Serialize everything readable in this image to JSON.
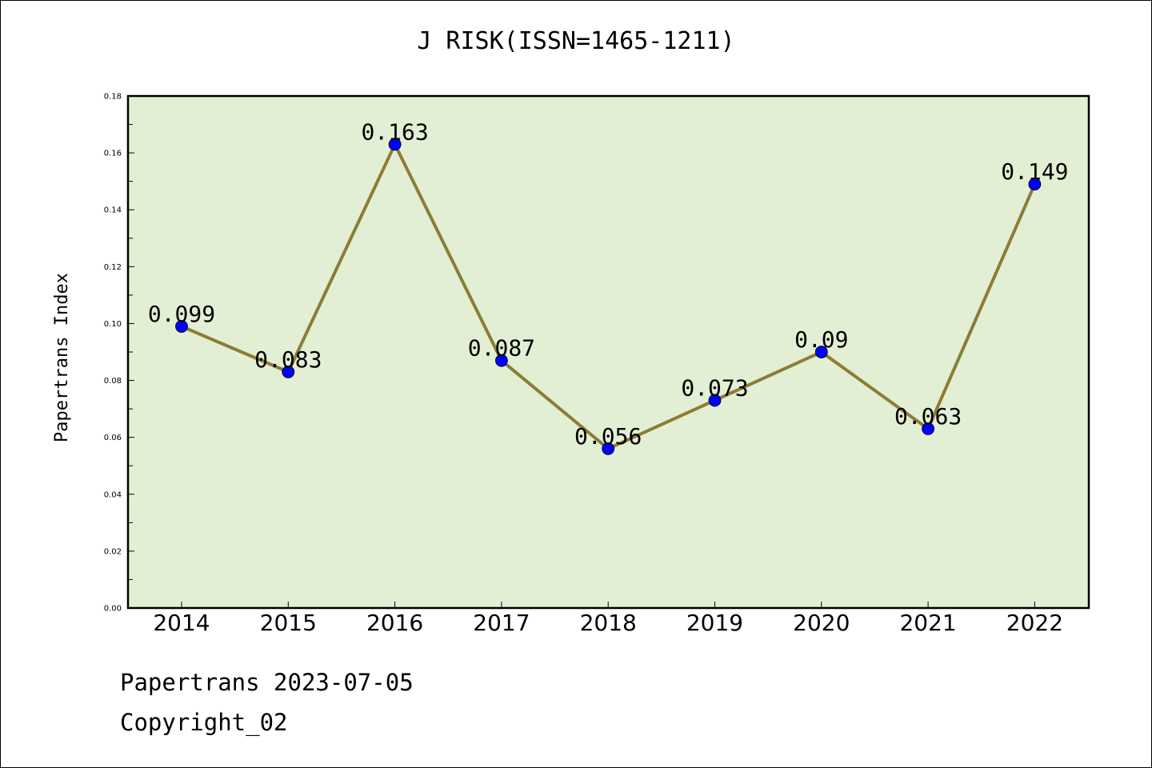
{
  "chart_data": {
    "type": "line",
    "title": "J RISK(ISSN=1465-1211)",
    "xlabel": "",
    "ylabel": "Papertrans Index",
    "categories": [
      "2014",
      "2015",
      "2016",
      "2017",
      "2018",
      "2019",
      "2020",
      "2021",
      "2022"
    ],
    "series": [
      {
        "values": [
          0.099,
          0.083,
          0.163,
          0.087,
          0.056,
          0.073,
          0.09,
          0.063,
          0.149
        ],
        "data_labels": [
          "0.099",
          "0.083",
          "0.163",
          "0.087",
          "0.056",
          "0.073",
          "0.09",
          "0.063",
          "0.149"
        ],
        "line_color": "#8b7d35",
        "marker_color": "#0000ff"
      }
    ],
    "ylim": [
      0,
      0.18
    ],
    "yticks": [
      "0.00",
      "0.02",
      "0.04",
      "0.06",
      "0.08",
      "0.10",
      "0.12",
      "0.14",
      "0.16",
      "0.18"
    ],
    "grid": false,
    "plot_background": "#e2efd4"
  },
  "footer": {
    "line1": "Papertrans 2023-07-05",
    "line2": "Copyright_02"
  }
}
